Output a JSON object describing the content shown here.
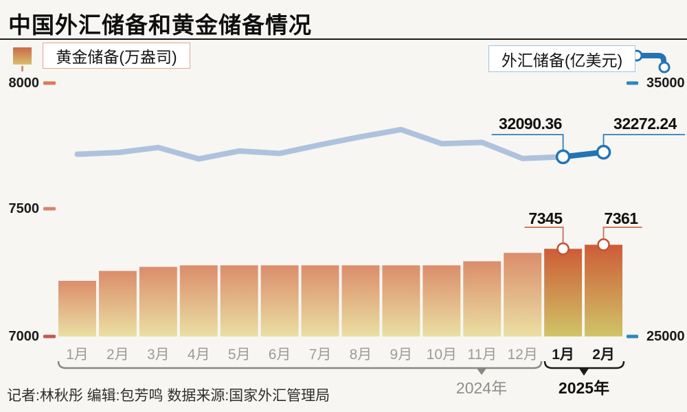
{
  "page": {
    "title": "中国外汇储备和黄金储备情况"
  },
  "legend": {
    "gold_label": "黄金储备(万盎司)",
    "forex_label": "外汇储备(亿美元)"
  },
  "axes": {
    "left": {
      "ticks": [
        {
          "label": "8000",
          "color": "#dd7950"
        },
        {
          "label": "7500",
          "color": "#d5846d"
        },
        {
          "label": "7000",
          "color": "#c05a50"
        }
      ]
    },
    "right": {
      "color": "#2e86bb",
      "ticks": [
        {
          "label": "35000"
        },
        {
          "label": "25000"
        }
      ]
    }
  },
  "callouts": {
    "forex_jan": "32090.36",
    "forex_feb": "32272.24",
    "gold_jan": "7345",
    "gold_feb": "7361"
  },
  "year_groups": [
    {
      "label": "2024年",
      "from": 0,
      "to": 11
    },
    {
      "label": "2025年",
      "from": 12,
      "to": 13
    }
  ],
  "footer": {
    "credits": "记者:林秋彤  编辑:包芳鸣  数据来源:国家外汇管理局"
  },
  "colors": {
    "background": "#f7f6f3",
    "bar2024": [
      "#db8d6b",
      "#eadfa3"
    ],
    "bar2025": [
      "#cd5c37",
      "#d0c468"
    ],
    "line2024": "#afc2dd",
    "line2025": "#2374b5",
    "gold_ring": "#c5502f",
    "gold_leader": "#cf7a63",
    "forex_leader": "#2e7fb8",
    "month_2024": "#9b9b9b",
    "month_2025": "#1a1a1a",
    "brace_2024": "#8b8780",
    "brace_2025": "#1a1a1a"
  },
  "chart_data": {
    "type": "combo",
    "title": "中国外汇储备和黄金储备情况",
    "categories": [
      "1月",
      "2月",
      "3月",
      "4月",
      "5月",
      "6月",
      "7月",
      "8月",
      "9月",
      "10月",
      "11月",
      "12月",
      "1月",
      "2月"
    ],
    "category_years": [
      "2024年",
      "2024年",
      "2024年",
      "2024年",
      "2024年",
      "2024年",
      "2024年",
      "2024年",
      "2024年",
      "2024年",
      "2024年",
      "2024年",
      "2025年",
      "2025年"
    ],
    "series": [
      {
        "name": "黄金储备(万盎司)",
        "type": "bar",
        "axis": "left",
        "values": [
          7219,
          7258,
          7274,
          7280,
          7280,
          7280,
          7280,
          7280,
          7280,
          7280,
          7296,
          7329,
          7345,
          7361
        ]
      },
      {
        "name": "外汇储备(亿美元)",
        "type": "line",
        "axis": "right",
        "values": [
          32193,
          32258,
          32457,
          32008,
          32320,
          32224,
          32564,
          32882,
          33164,
          32610,
          32659,
          32024,
          32090.36,
          32272.24
        ]
      }
    ],
    "left_axis": {
      "label": "黄金储备(万盎司)",
      "ticks": [
        8000,
        7500,
        7000
      ],
      "range": [
        7000,
        8000
      ]
    },
    "right_axis": {
      "label": "外汇储备(亿美元)",
      "ticks": [
        35000,
        25000
      ],
      "range": [
        25000,
        35000
      ]
    },
    "labeled_points": {
      "gold": [
        {
          "index": 12,
          "label": "7345"
        },
        {
          "index": 13,
          "label": "7361"
        }
      ],
      "forex": [
        {
          "index": 12,
          "label": "32090.36"
        },
        {
          "index": 13,
          "label": "32272.24"
        }
      ]
    },
    "highlight_from_index": 12,
    "grid": false,
    "legend_position": "top"
  }
}
